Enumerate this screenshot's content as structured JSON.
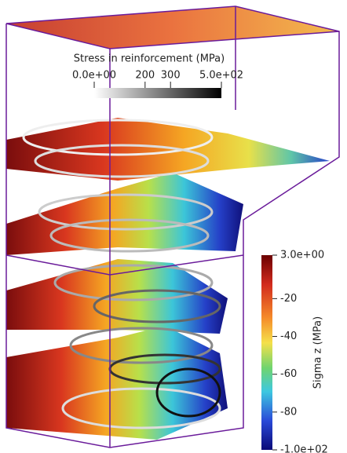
{
  "colorbars": [
    {
      "title": "Stress in reinforcement (MPa)",
      "range": [
        0,
        500
      ],
      "ticks": [
        {
          "value": 0,
          "label": "0.0e+00"
        },
        200,
        300,
        {
          "value": 500,
          "label": "5.0e+02"
        }
      ]
    },
    {
      "title": "Sigma z (MPa)",
      "range": [
        -100,
        3
      ],
      "ticks": [
        {
          "value": 3,
          "label": "3.0e+00"
        },
        -20,
        -40,
        -60,
        -80,
        {
          "value": -100,
          "label": "-1.0e+02"
        }
      ]
    }
  ]
}
